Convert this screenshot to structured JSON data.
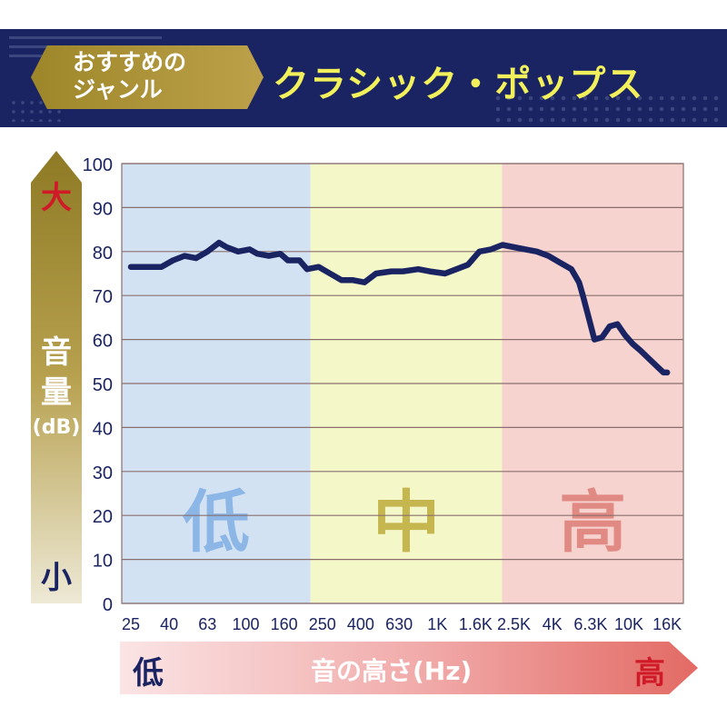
{
  "header": {
    "genre_label": "おすすめの\nジャンル",
    "genre_name": "クラシック・ポップス"
  },
  "y_axis": {
    "high_label": "大",
    "low_label": "小",
    "name": "音量",
    "unit": "(dB)"
  },
  "x_axis": {
    "low_label": "低",
    "high_label": "高",
    "name": "音の高さ(Hz)"
  },
  "colors": {
    "navy": "#1b2462",
    "low_band": "#d3e2f3",
    "mid_band": "#f4f8c9",
    "high_band": "#f6d3cf",
    "low_text": "#8bb6e6",
    "mid_text": "#c6b650",
    "high_text": "#e18a83"
  },
  "chart_data": {
    "type": "line",
    "ylim": [
      0,
      100
    ],
    "y_ticks": [
      "0",
      "10",
      "20",
      "30",
      "40",
      "50",
      "60",
      "70",
      "80",
      "90",
      "100"
    ],
    "categories": [
      "25",
      "40",
      "63",
      "100",
      "160",
      "250",
      "400",
      "630",
      "1K",
      "1.6K",
      "2.5K",
      "4K",
      "6.3K",
      "10K",
      "16K"
    ],
    "bands": [
      {
        "label": "低",
        "from": "25",
        "to": "250"
      },
      {
        "label": "中",
        "from": "250",
        "to": "2.5K"
      },
      {
        "label": "高",
        "from": "2.5K",
        "to": "16K"
      }
    ],
    "series": [
      {
        "x": [
          0,
          0.4,
          0.8,
          1.1,
          1.4,
          1.7,
          2.0,
          2.3,
          2.5,
          2.8,
          3.1,
          3.3,
          3.6,
          3.9,
          4.1,
          4.4,
          4.6,
          4.9,
          5.2,
          5.5,
          5.8,
          6.1,
          6.4,
          6.8,
          7.1,
          7.5,
          7.8,
          8.2,
          8.5,
          8.8,
          9.1,
          9.4,
          9.7,
          10.0,
          10.3,
          10.6,
          10.9,
          11.2,
          11.5,
          11.7,
          11.8,
          11.95,
          12.1,
          12.3,
          12.5,
          12.7,
          12.9,
          13.1,
          13.3,
          13.6,
          13.9,
          14.0
        ],
        "y": [
          76.5,
          76.5,
          76.5,
          78,
          79,
          78.5,
          80,
          82,
          81,
          80,
          80.5,
          79.5,
          79,
          79.5,
          78,
          78,
          76,
          76.5,
          75,
          73.5,
          73.5,
          73,
          75,
          75.5,
          75.5,
          76,
          75.5,
          75,
          76,
          77,
          80,
          80.5,
          81.5,
          81,
          80.5,
          80,
          79,
          77.5,
          76,
          73,
          70,
          65,
          60,
          60.5,
          63,
          63.5,
          61,
          59,
          57.5,
          55,
          52.5,
          52.5
        ]
      }
    ]
  }
}
